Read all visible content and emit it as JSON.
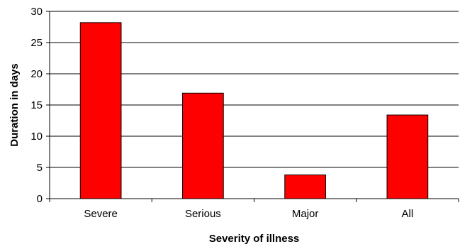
{
  "chart_data": {
    "type": "bar",
    "categories": [
      "Severe",
      "Serious",
      "Major",
      "All"
    ],
    "values": [
      28.2,
      16.9,
      3.8,
      13.4
    ],
    "title": "",
    "xlabel": "Severity of illness",
    "ylabel": "Duration in days",
    "ylim": [
      0,
      30
    ],
    "yticks": [
      "0",
      "5",
      "10",
      "15",
      "20",
      "25",
      "30"
    ],
    "grid": true,
    "legend": "none",
    "bar_color": "#ff0000",
    "bar_edge_color": "#000000",
    "grid_color": "#000000"
  }
}
